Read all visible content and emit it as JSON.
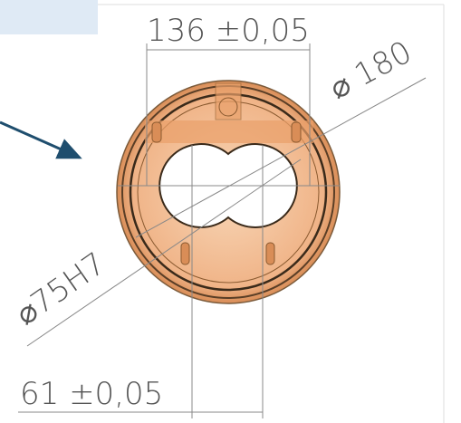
{
  "dimensions": {
    "center_distance": "136 ±0,05",
    "outer_diameter": "⌀ 180",
    "bore_diameter": "⌀75H7",
    "offset": "61 ±0,05"
  }
}
